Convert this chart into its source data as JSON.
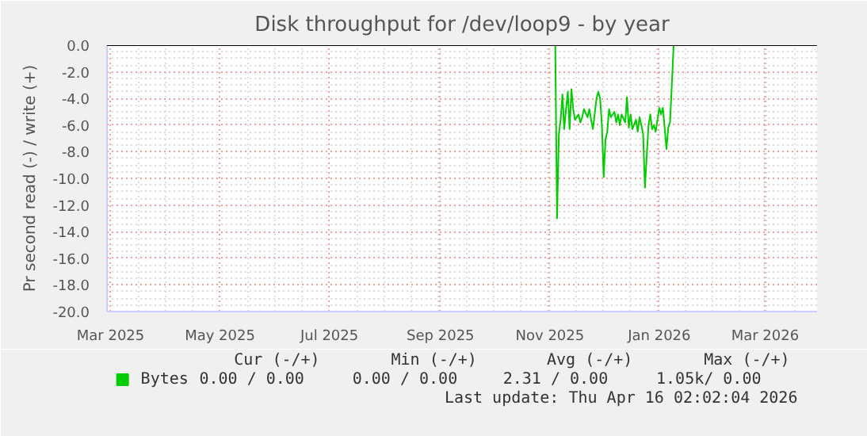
{
  "chart_data": {
    "type": "line",
    "title": "Disk throughput for /dev/loop9 - by year",
    "ylabel": "Pr second read (-) / write (+)",
    "xlim": [
      "2025-02-27",
      "2026-03-30"
    ],
    "xticks": [
      {
        "value": "2025-03-01",
        "label": "Mar 2025"
      },
      {
        "value": "2025-05-01",
        "label": "May 2025"
      },
      {
        "value": "2025-07-01",
        "label": "Jul 2025"
      },
      {
        "value": "2025-09-01",
        "label": "Sep 2025"
      },
      {
        "value": "2025-11-01",
        "label": "Nov 2025"
      },
      {
        "value": "2026-01-01",
        "label": "Jan 2026"
      },
      {
        "value": "2026-03-01",
        "label": "Mar 2026"
      }
    ],
    "ylim": [
      -20,
      0
    ],
    "yticks": [
      {
        "value": 0,
        "label": "0.0"
      },
      {
        "value": -2,
        "label": "-2.0"
      },
      {
        "value": -4,
        "label": "-4.0"
      },
      {
        "value": -6,
        "label": "-6.0"
      },
      {
        "value": -8,
        "label": "-8.0"
      },
      {
        "value": -10,
        "label": "-10.0"
      },
      {
        "value": -12,
        "label": "-12.0"
      },
      {
        "value": -14,
        "label": "-14.0"
      },
      {
        "value": -16,
        "label": "-16.0"
      },
      {
        "value": -18,
        "label": "-18.0"
      },
      {
        "value": -20,
        "label": "-20.0"
      }
    ],
    "grid": true,
    "legend": "bottom left",
    "marker": "none",
    "line_style": "solid",
    "ref_lines": [
      {
        "axis": "y",
        "value": 0,
        "color": "#000000"
      }
    ],
    "series": [
      {
        "name": "Bytes",
        "color": "#00cc00",
        "x": [
          "2025-11-04",
          "2025-11-05",
          "2025-11-06",
          "2025-11-07",
          "2025-11-08",
          "2025-11-09",
          "2025-11-10",
          "2025-11-11",
          "2025-11-12",
          "2025-11-13",
          "2025-11-14",
          "2025-11-15",
          "2025-11-17",
          "2025-11-18",
          "2025-11-19",
          "2025-11-20",
          "2025-11-22",
          "2025-11-23",
          "2025-11-24",
          "2025-11-25",
          "2025-11-27",
          "2025-11-28",
          "2025-11-29",
          "2025-11-30",
          "2025-12-01",
          "2025-12-02",
          "2025-12-03",
          "2025-12-04",
          "2025-12-05",
          "2025-12-07",
          "2025-12-08",
          "2025-12-09",
          "2025-12-10",
          "2025-12-11",
          "2025-12-13",
          "2025-12-14",
          "2025-12-15",
          "2025-12-16",
          "2025-12-17",
          "2025-12-19",
          "2025-12-20",
          "2025-12-21",
          "2025-12-22",
          "2025-12-23",
          "2025-12-24",
          "2025-12-26",
          "2025-12-27",
          "2025-12-28",
          "2025-12-29",
          "2025-12-30",
          "2026-01-01",
          "2026-01-02",
          "2026-01-03",
          "2026-01-04",
          "2026-01-05",
          "2026-01-06",
          "2026-01-07",
          "2026-01-08",
          "2026-01-09"
        ],
        "values": [
          0,
          -13.0,
          -6.7,
          -5.6,
          -3.7,
          -6.3,
          -4.8,
          -3.5,
          -6.3,
          -3.3,
          -4.8,
          -5.6,
          -5.2,
          -5.8,
          -5.4,
          -4.8,
          -5.4,
          -4.8,
          -5.6,
          -6.3,
          -4.0,
          -3.5,
          -4.0,
          -6.0,
          -9.9,
          -7.1,
          -6.5,
          -4.8,
          -5.4,
          -5.0,
          -5.8,
          -5.2,
          -6.0,
          -5.2,
          -5.8,
          -3.9,
          -6.2,
          -5.2,
          -6.3,
          -5.6,
          -6.5,
          -5.4,
          -6.0,
          -6.7,
          -10.7,
          -6.0,
          -5.2,
          -6.3,
          -6.0,
          -6.5,
          -4.7,
          -5.2,
          -4.7,
          -6.2,
          -7.8,
          -6.2,
          -5.8,
          -3.0,
          0
        ]
      }
    ],
    "annotations": [
      "Cur (-/+)",
      "Min (-/+)",
      "Avg (-/+)",
      "Max (-/+)",
      "0.00 /    0.00",
      "0.00 /    0.00",
      "2.31 /    0.00",
      "1.05k/    0.00",
      "Last update: Thu Apr 16 02:02:04 2026"
    ]
  }
}
